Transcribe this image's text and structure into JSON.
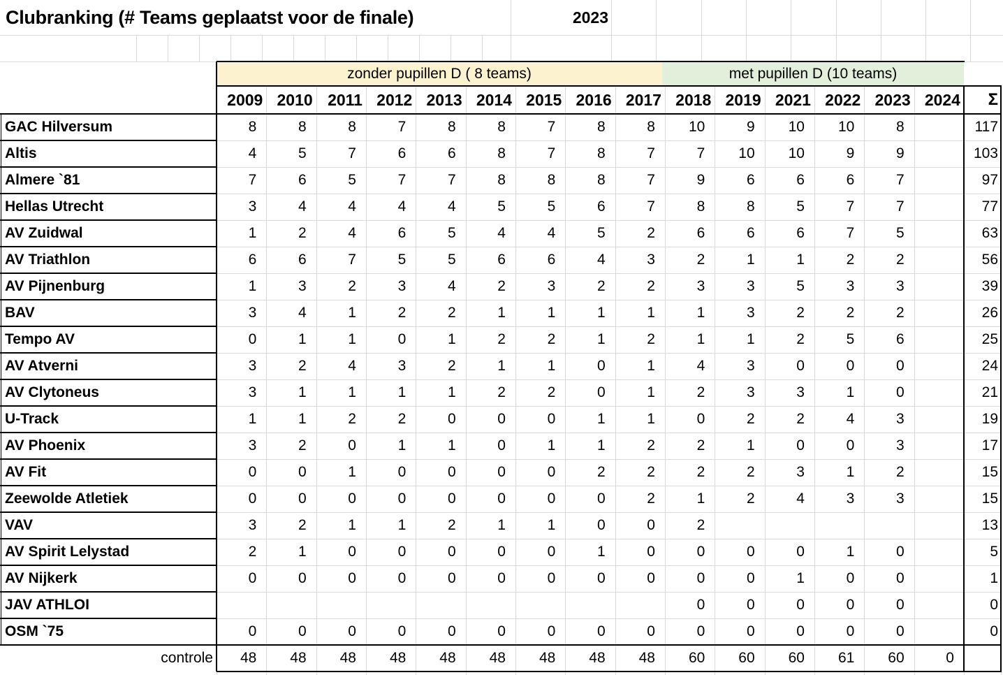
{
  "title": "Clubranking (# Teams geplaatst voor de finale)",
  "year_badge": "2023",
  "colors": {
    "band_yellow": "#fdf2cf",
    "band_green": "#e2efda",
    "gridline": "#d9d9d9",
    "border": "#000000",
    "text": "#000000"
  },
  "table": {
    "group_headers": [
      {
        "label": "zonder pupillen D ( 8 teams)",
        "years": "2009-2017"
      },
      {
        "label": "met pupillen D (10 teams)",
        "years": "2018-2024"
      }
    ],
    "year_columns": [
      "2009",
      "2010",
      "2011",
      "2012",
      "2013",
      "2014",
      "2015",
      "2016",
      "2017",
      "2018",
      "2019",
      "2021",
      "2022",
      "2023",
      "2024"
    ],
    "sum_header": "Σ",
    "rows": [
      {
        "club": "GAC Hilversum",
        "values": [
          8,
          8,
          8,
          7,
          8,
          8,
          7,
          8,
          8,
          10,
          9,
          10,
          10,
          8,
          ""
        ],
        "sum": 117
      },
      {
        "club": "Altis",
        "values": [
          4,
          5,
          7,
          6,
          6,
          8,
          7,
          8,
          7,
          7,
          10,
          10,
          9,
          9,
          ""
        ],
        "sum": 103
      },
      {
        "club": "Almere `81",
        "values": [
          7,
          6,
          5,
          7,
          7,
          8,
          8,
          8,
          7,
          9,
          6,
          6,
          6,
          7,
          ""
        ],
        "sum": 97
      },
      {
        "club": "Hellas Utrecht",
        "values": [
          3,
          4,
          4,
          4,
          4,
          5,
          5,
          6,
          7,
          8,
          8,
          5,
          7,
          7,
          ""
        ],
        "sum": 77
      },
      {
        "club": "AV Zuidwal",
        "values": [
          1,
          2,
          4,
          6,
          5,
          4,
          4,
          5,
          2,
          6,
          6,
          6,
          7,
          5,
          ""
        ],
        "sum": 63
      },
      {
        "club": "AV Triathlon",
        "values": [
          6,
          6,
          7,
          5,
          5,
          6,
          6,
          4,
          3,
          2,
          1,
          1,
          2,
          2,
          ""
        ],
        "sum": 56
      },
      {
        "club": "AV Pijnenburg",
        "values": [
          1,
          3,
          2,
          3,
          4,
          2,
          3,
          2,
          2,
          3,
          3,
          5,
          3,
          3,
          ""
        ],
        "sum": 39
      },
      {
        "club": "BAV",
        "values": [
          3,
          4,
          1,
          2,
          2,
          1,
          1,
          1,
          1,
          1,
          3,
          2,
          2,
          2,
          ""
        ],
        "sum": 26
      },
      {
        "club": "Tempo AV",
        "values": [
          0,
          1,
          1,
          0,
          1,
          2,
          2,
          1,
          2,
          1,
          1,
          2,
          5,
          6,
          ""
        ],
        "sum": 25
      },
      {
        "club": "AV Atverni",
        "values": [
          3,
          2,
          4,
          3,
          2,
          1,
          1,
          0,
          1,
          4,
          3,
          0,
          0,
          0,
          ""
        ],
        "sum": 24
      },
      {
        "club": "AV Clytoneus",
        "values": [
          3,
          1,
          1,
          1,
          1,
          2,
          2,
          0,
          1,
          2,
          3,
          3,
          1,
          0,
          ""
        ],
        "sum": 21
      },
      {
        "club": "U-Track",
        "values": [
          1,
          1,
          2,
          2,
          0,
          0,
          0,
          1,
          1,
          0,
          2,
          2,
          4,
          3,
          ""
        ],
        "sum": 19
      },
      {
        "club": "AV Phoenix",
        "values": [
          3,
          2,
          0,
          1,
          1,
          0,
          1,
          1,
          2,
          2,
          1,
          0,
          0,
          3,
          ""
        ],
        "sum": 17
      },
      {
        "club": "AV Fit",
        "values": [
          0,
          0,
          1,
          0,
          0,
          0,
          0,
          2,
          2,
          2,
          2,
          3,
          1,
          2,
          ""
        ],
        "sum": 15
      },
      {
        "club": "Zeewolde Atletiek",
        "values": [
          0,
          0,
          0,
          0,
          0,
          0,
          0,
          0,
          2,
          1,
          2,
          4,
          3,
          3,
          ""
        ],
        "sum": 15
      },
      {
        "club": "VAV",
        "values": [
          3,
          2,
          1,
          1,
          2,
          1,
          1,
          0,
          0,
          2,
          "",
          "",
          "",
          "",
          ""
        ],
        "sum": 13
      },
      {
        "club": "AV Spirit Lelystad",
        "values": [
          2,
          1,
          0,
          0,
          0,
          0,
          0,
          1,
          0,
          0,
          0,
          0,
          1,
          0,
          ""
        ],
        "sum": 5
      },
      {
        "club": "AV Nijkerk",
        "values": [
          0,
          0,
          0,
          0,
          0,
          0,
          0,
          0,
          0,
          0,
          0,
          1,
          0,
          0,
          ""
        ],
        "sum": 1
      },
      {
        "club": "JAV ATHLOI",
        "values": [
          "",
          "",
          "",
          "",
          "",
          "",
          "",
          "",
          "",
          0,
          0,
          0,
          0,
          0,
          ""
        ],
        "sum": 0
      },
      {
        "club": "OSM `75",
        "values": [
          0,
          0,
          0,
          0,
          0,
          0,
          0,
          0,
          0,
          0,
          0,
          0,
          0,
          0,
          ""
        ],
        "sum": 0
      }
    ],
    "footer": {
      "label": "controle",
      "values": [
        48,
        48,
        48,
        48,
        48,
        48,
        48,
        48,
        48,
        60,
        60,
        60,
        61,
        60,
        0
      ],
      "sum": ""
    }
  }
}
